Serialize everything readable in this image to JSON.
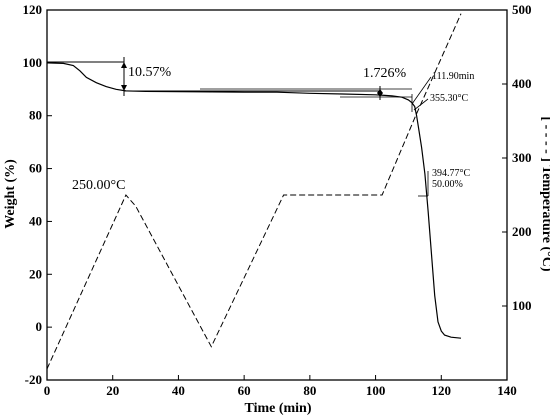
{
  "chart_data": {
    "type": "line",
    "title": "",
    "xlabel": "Time (min)",
    "ylabel": "Weight (%)",
    "y2label": "[ - - - - ] Temperature (°C)",
    "xlim": [
      0,
      140
    ],
    "ylim": [
      -20,
      120
    ],
    "y2lim": [
      0,
      500
    ],
    "x_ticks": [
      0,
      20,
      40,
      60,
      80,
      100,
      120,
      140
    ],
    "y_ticks": [
      -20,
      0,
      20,
      40,
      60,
      80,
      100,
      120
    ],
    "y2_ticks": [
      100,
      200,
      300,
      400,
      500
    ],
    "grid": false,
    "series": [
      {
        "axis": "left",
        "style": "solid",
        "x": [
          0,
          5,
          8,
          10,
          12,
          15,
          18,
          21,
          24,
          30,
          40,
          50,
          60,
          70,
          80,
          90,
          100,
          105,
          108,
          110,
          111,
          111.9,
          112.5,
          113,
          114,
          115,
          116,
          117,
          118,
          119,
          120,
          121,
          123,
          126
        ],
        "y": [
          100,
          99.8,
          99,
          97,
          94.5,
          92.5,
          91,
          90,
          89.4,
          89.2,
          89.1,
          89.0,
          88.9,
          88.9,
          88.5,
          88.2,
          87.9,
          87.5,
          87.0,
          86,
          85,
          83.5,
          80,
          76,
          68,
          58,
          44,
          28,
          12,
          2,
          -1.5,
          -3,
          -3.8,
          -4.2
        ]
      },
      {
        "axis": "right",
        "style": "dashed",
        "x": [
          0,
          24,
          27,
          50,
          72,
          102,
          112,
          126
        ],
        "y": [
          15,
          250,
          235,
          45,
          250,
          250,
          355,
          495
        ]
      }
    ],
    "annotations": [
      {
        "text": "10.57%",
        "x": 24,
        "y": 94.5
      },
      {
        "text": "1.726%",
        "x": 102,
        "y": 89
      },
      {
        "text": "111.90min",
        "x": 111.9,
        "y": 86
      },
      {
        "text": "355.30°C",
        "x": 111.9,
        "y": 83.5
      },
      {
        "text": "250.00°C",
        "x": 24,
        "y": 50
      },
      {
        "text": "394.77°C",
        "x": 115,
        "y": 50
      },
      {
        "text": "50.00%",
        "x": 115,
        "y": 50
      }
    ]
  }
}
